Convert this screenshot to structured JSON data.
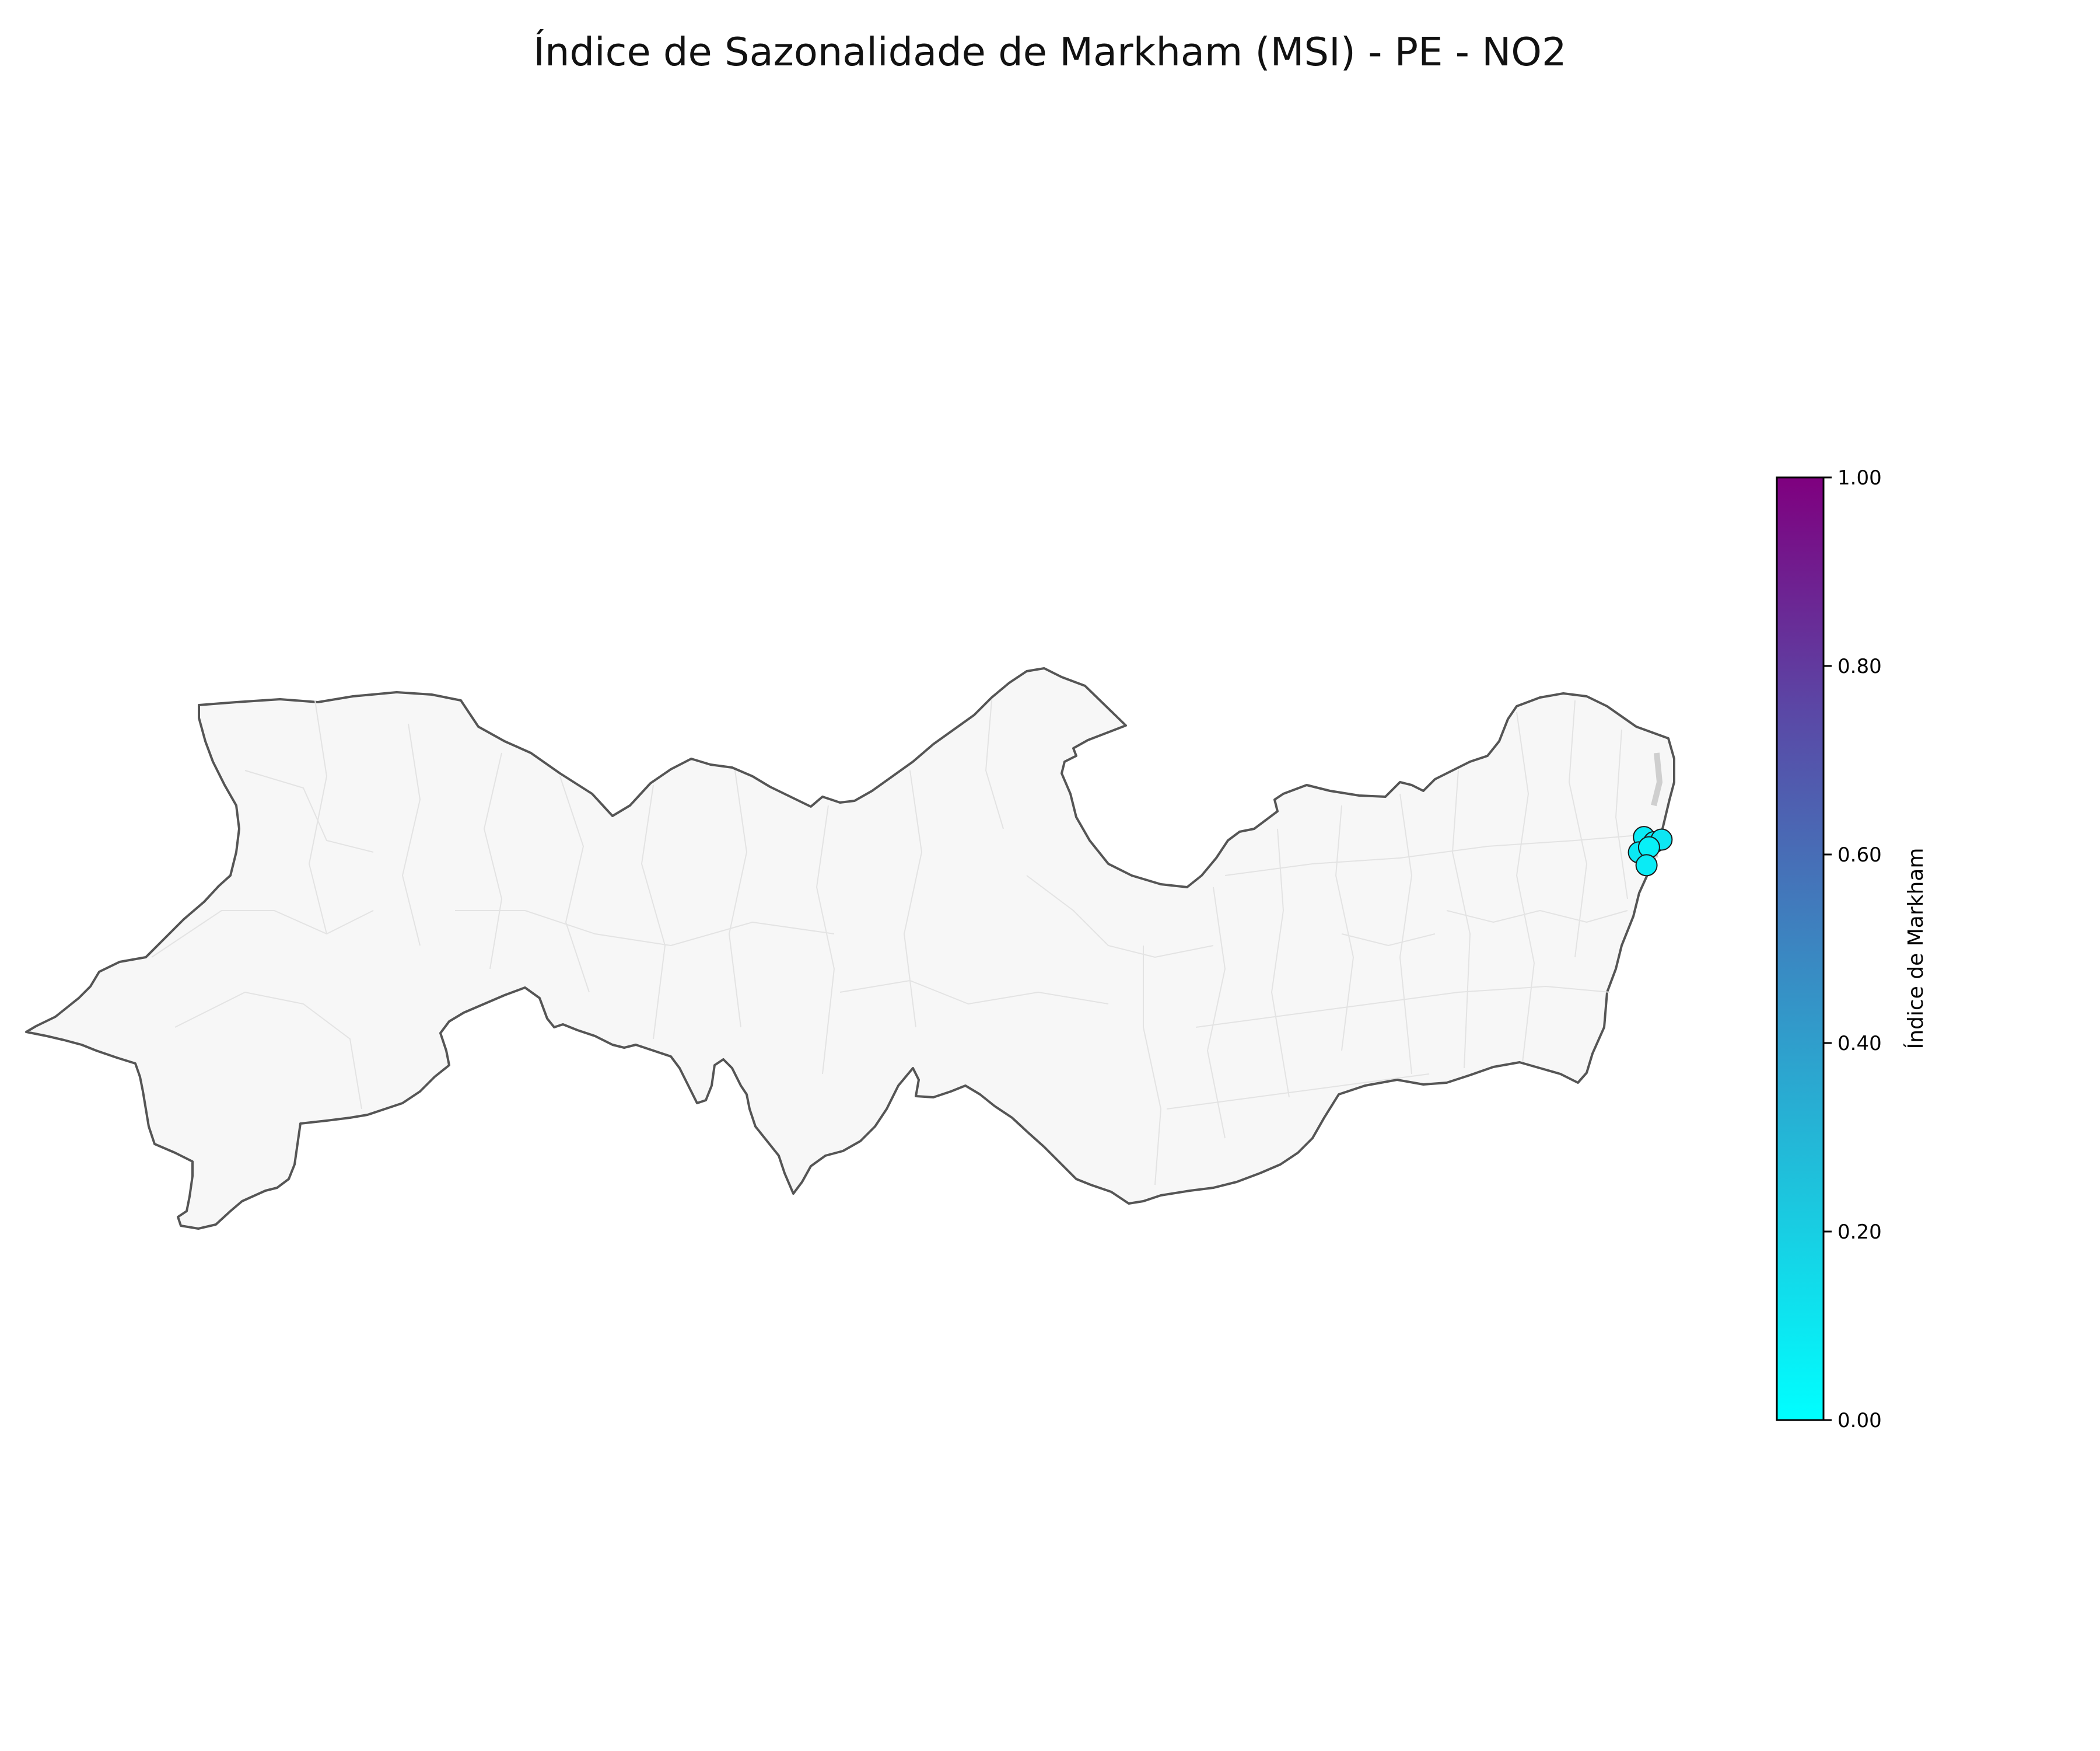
{
  "title": "Índice de Sazonalidade de Markham (MSI) - PE - NO2",
  "colorbar": {
    "label": "Índice de Markham",
    "min": 0,
    "max": 1,
    "ticks": [
      "0.00",
      "0.20",
      "0.40",
      "0.60",
      "0.80",
      "1.00"
    ],
    "color_low": "#00ffff",
    "color_high": "#7f007f"
  },
  "map": {
    "region": "Pernambuco",
    "fill_color": "#f7f7f7",
    "border_color": "#555555",
    "municipality_line_color": "#e3e3e3"
  },
  "chart_data": {
    "type": "scatter",
    "title": "Índice de Sazonalidade de Markham (MSI) - PE - NO2",
    "value_label": "Índice de Markham",
    "value_range": [
      0,
      1
    ],
    "points": [
      {
        "lon": -34.93,
        "lat": -7.94,
        "value": 0.08
      },
      {
        "lon": -34.89,
        "lat": -7.96,
        "value": 0.07
      },
      {
        "lon": -34.86,
        "lat": -7.95,
        "value": 0.1
      },
      {
        "lon": -34.95,
        "lat": -8.0,
        "value": 0.09
      },
      {
        "lon": -34.91,
        "lat": -7.98,
        "value": 0.06
      },
      {
        "lon": -34.92,
        "lat": -8.05,
        "value": 0.08
      }
    ]
  }
}
